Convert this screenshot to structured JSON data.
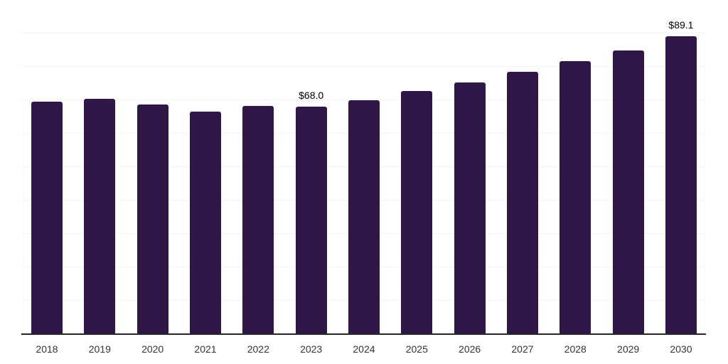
{
  "chart_data": {
    "type": "bar",
    "title": "",
    "xlabel": "",
    "ylabel": "",
    "categories": [
      "2018",
      "2019",
      "2020",
      "2021",
      "2022",
      "2023",
      "2024",
      "2025",
      "2026",
      "2027",
      "2028",
      "2029",
      "2030"
    ],
    "values": [
      69.5,
      70.5,
      68.8,
      66.7,
      68.3,
      68.0,
      70.1,
      72.7,
      75.3,
      78.5,
      81.6,
      85.0,
      89.1
    ],
    "bar_labels": [
      "",
      "",
      "",
      "",
      "",
      "$68.0",
      "",
      "",
      "",
      "",
      "",
      "",
      "$89.1"
    ],
    "ylim": [
      0,
      100
    ],
    "gridline_step": 10,
    "grid": "horizontal",
    "legend": "none",
    "colors": {
      "bar": "#2F1747",
      "gridline": "#f2f2f2",
      "axis_line": "#262626",
      "tick_label": "#333333",
      "data_label": "#000000",
      "background": "#ffffff"
    }
  }
}
